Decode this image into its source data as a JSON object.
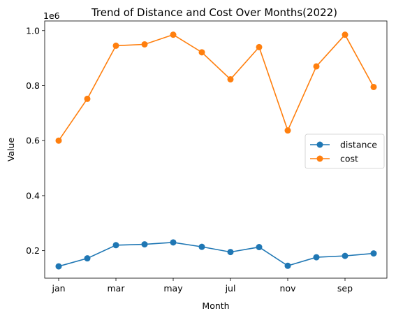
{
  "chart_data": {
    "type": "line",
    "title": "Trend of Distance and Cost Over Months(2022)",
    "xlabel": "Month",
    "ylabel": "Value",
    "offset_text": "1e6",
    "x_tick_labels": [
      "jan",
      "mar",
      "may",
      "jul",
      "nov",
      "sep"
    ],
    "y_ticks": [
      0.2,
      0.4,
      0.6,
      0.8,
      1.0
    ],
    "y_tick_labels": [
      "0.2",
      "0.4",
      "0.6",
      "0.8",
      "1.0"
    ],
    "ylim": [
      0.1,
      1.035
    ],
    "grid": false,
    "legend_position": "center-right",
    "series": [
      {
        "name": "distance",
        "color": "#1f77b4",
        "values": [
          0.143,
          0.172,
          0.22,
          0.223,
          0.23,
          0.214,
          0.195,
          0.213,
          0.145,
          0.176,
          0.181,
          0.19
        ]
      },
      {
        "name": "cost",
        "color": "#ff7f0e",
        "values": [
          0.6,
          0.752,
          0.945,
          0.95,
          0.985,
          0.921,
          0.823,
          0.94,
          0.637,
          0.87,
          0.985,
          0.795
        ]
      }
    ]
  }
}
